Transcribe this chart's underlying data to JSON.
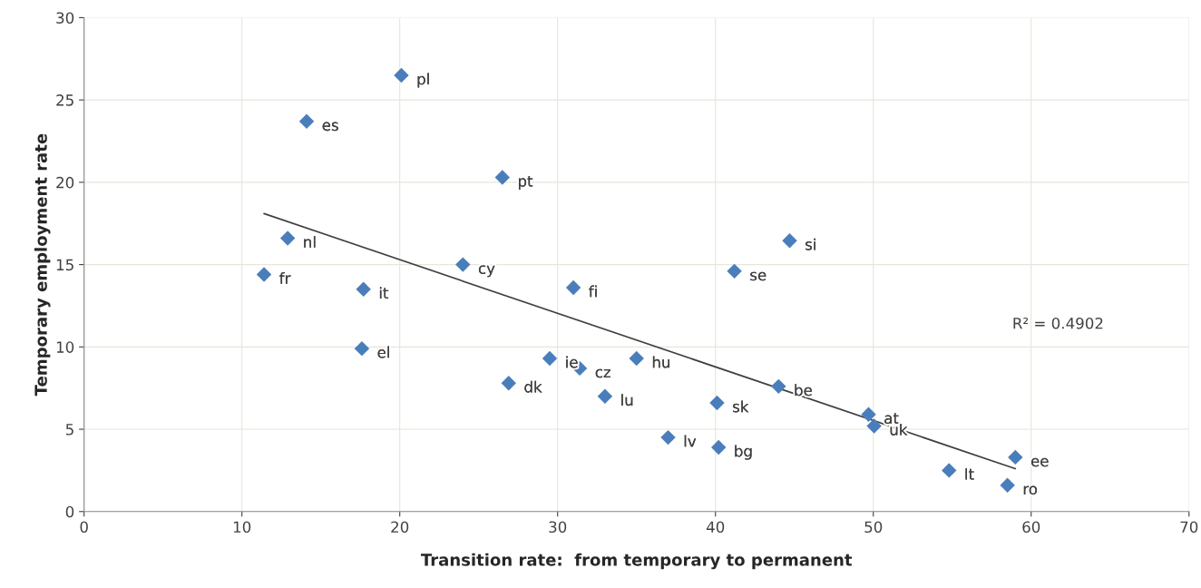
{
  "chart_data": {
    "type": "scatter",
    "xlabel": "Transition rate:  from temporary to permanent",
    "ylabel": "Temporary employment rate",
    "xlim": [
      0,
      70
    ],
    "xticks": [
      0,
      10,
      20,
      30,
      40,
      50,
      60,
      70
    ],
    "ylim": [
      0,
      30
    ],
    "yticks": [
      0,
      5,
      10,
      15,
      20,
      25,
      30
    ],
    "grid": true,
    "legend": false,
    "series": [
      {
        "color": "#4a7ebb",
        "marker": "diamond",
        "x": [
          20.1,
          14.1,
          26.5,
          12.9,
          11.4,
          17.7,
          17.6,
          24.0,
          31.0,
          29.5,
          31.4,
          26.9,
          33.0,
          35.0,
          44.7,
          41.2,
          44.0,
          40.1,
          37.0,
          40.2,
          49.7,
          50.05,
          59.0,
          54.8,
          58.5
        ],
        "values": [
          26.5,
          23.7,
          20.3,
          16.6,
          14.4,
          13.5,
          9.9,
          15.0,
          13.6,
          9.3,
          8.7,
          7.8,
          7.0,
          9.3,
          16.45,
          14.6,
          7.6,
          6.6,
          4.5,
          3.9,
          5.9,
          5.2,
          3.3,
          2.5,
          1.6
        ]
      },
      {
        "type": "line",
        "color": "#404040",
        "marker": "none",
        "line_style": "solid",
        "x": [
          11.4,
          59.0
        ],
        "values": [
          18.1,
          2.6
        ]
      }
    ],
    "annotations": [
      {
        "text": "pl",
        "x": 20.1,
        "y": 26.5
      },
      {
        "text": "es",
        "x": 14.1,
        "y": 23.7
      },
      {
        "text": "pt",
        "x": 26.5,
        "y": 20.3
      },
      {
        "text": "nl",
        "x": 12.9,
        "y": 16.6
      },
      {
        "text": "fr",
        "x": 11.4,
        "y": 14.4
      },
      {
        "text": "it",
        "x": 17.7,
        "y": 13.5
      },
      {
        "text": "el",
        "x": 17.6,
        "y": 9.9
      },
      {
        "text": "cy",
        "x": 24.0,
        "y": 15.0
      },
      {
        "text": "fi",
        "x": 31.0,
        "y": 13.6
      },
      {
        "text": "ie",
        "x": 29.5,
        "y": 9.3
      },
      {
        "text": "cz",
        "x": 31.4,
        "y": 8.7
      },
      {
        "text": "dk",
        "x": 26.9,
        "y": 7.8
      },
      {
        "text": "lu",
        "x": 33.0,
        "y": 7.0
      },
      {
        "text": "hu",
        "x": 35.0,
        "y": 9.3
      },
      {
        "text": "si",
        "x": 44.7,
        "y": 16.45
      },
      {
        "text": "se",
        "x": 41.2,
        "y": 14.6
      },
      {
        "text": "be",
        "x": 44.0,
        "y": 7.6
      },
      {
        "text": "sk",
        "x": 40.1,
        "y": 6.6
      },
      {
        "text": "lv",
        "x": 37.0,
        "y": 4.5
      },
      {
        "text": "bg",
        "x": 40.2,
        "y": 3.9
      },
      {
        "text": "at",
        "x": 49.7,
        "y": 5.9
      },
      {
        "text": "uk",
        "x": 50.05,
        "y": 5.2
      },
      {
        "text": "ee",
        "x": 59.0,
        "y": 3.3
      },
      {
        "text": "lt",
        "x": 54.8,
        "y": 2.5
      },
      {
        "text": "ro",
        "x": 58.5,
        "y": 1.6
      },
      "R² = 0.4902"
    ]
  }
}
